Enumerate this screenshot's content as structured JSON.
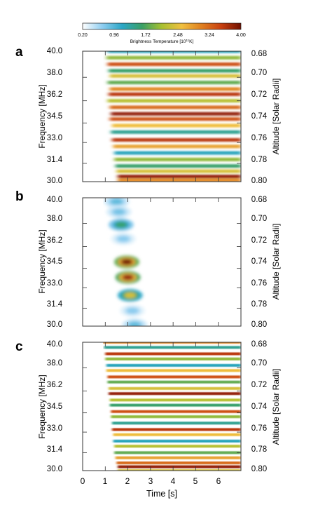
{
  "colorbar": {
    "ticks": [
      "0.20",
      "0.96",
      "1.72",
      "2.48",
      "3.24",
      "4.00"
    ],
    "label": "Brightness Temperature [10",
    "label_exp": "11",
    "label_unit": "K]",
    "colors": [
      "#ffffff",
      "#8ecdf0",
      "#2aa6c6",
      "#3aa066",
      "#a8c030",
      "#f0c040",
      "#e08020",
      "#c84010",
      "#701000"
    ]
  },
  "axes": {
    "ylabel_left": "Frequency [MHz]",
    "ylabel_right": "Altitude [Solar Radii]",
    "xlabel": "Time [s]",
    "x_ticks": [
      "0",
      "1",
      "2",
      "3",
      "4",
      "5",
      "6"
    ],
    "y_ticks_left": [
      "40.0",
      "38.0",
      "36.2",
      "34.5",
      "33.0",
      "31.4",
      "30.0"
    ],
    "y_ticks_right": [
      "0.68",
      "0.70",
      "0.72",
      "0.74",
      "0.76",
      "0.78",
      "0.80"
    ]
  },
  "panels": {
    "a": {
      "letter": "a"
    },
    "b": {
      "letter": "b"
    },
    "c": {
      "letter": "c"
    }
  },
  "chart_data": [
    {
      "type": "heatmap",
      "panel": "a",
      "xlim": [
        0,
        7
      ],
      "ylim": [
        30.0,
        40.0
      ],
      "colorbar_range": [
        0.2,
        4.0
      ],
      "striations": [
        {
          "freq": 40.0,
          "start": 1.1,
          "value": 1.2
        },
        {
          "freq": 39.5,
          "start": 1.05,
          "value": 2.0
        },
        {
          "freq": 39.0,
          "start": 1.1,
          "value": 3.4
        },
        {
          "freq": 38.5,
          "start": 1.15,
          "value": 1.6
        },
        {
          "freq": 38.1,
          "start": 1.2,
          "value": 2.4
        },
        {
          "freq": 37.6,
          "start": 1.1,
          "value": 1.8
        },
        {
          "freq": 37.1,
          "start": 1.2,
          "value": 3.0
        },
        {
          "freq": 36.7,
          "start": 1.15,
          "value": 3.6
        },
        {
          "freq": 36.2,
          "start": 1.1,
          "value": 2.2
        },
        {
          "freq": 35.7,
          "start": 1.2,
          "value": 3.2
        },
        {
          "freq": 35.2,
          "start": 1.25,
          "value": 3.8
        },
        {
          "freq": 34.8,
          "start": 1.2,
          "value": 3.4
        },
        {
          "freq": 34.3,
          "start": 1.3,
          "value": 2.6
        },
        {
          "freq": 33.8,
          "start": 1.25,
          "value": 1.4
        },
        {
          "freq": 33.2,
          "start": 1.3,
          "value": 3.6
        },
        {
          "freq": 32.7,
          "start": 1.35,
          "value": 2.8
        },
        {
          "freq": 32.2,
          "start": 1.4,
          "value": 1.2
        },
        {
          "freq": 31.7,
          "start": 1.4,
          "value": 2.0
        },
        {
          "freq": 31.2,
          "start": 1.45,
          "value": 1.6
        },
        {
          "freq": 30.8,
          "start": 1.5,
          "value": 2.4
        },
        {
          "freq": 30.4,
          "start": 1.55,
          "value": 3.8
        },
        {
          "freq": 30.1,
          "start": 1.55,
          "value": 3.0
        }
      ]
    },
    {
      "type": "heatmap",
      "panel": "b",
      "xlim": [
        0,
        7
      ],
      "ylim": [
        30.0,
        40.0
      ],
      "colorbar_range": [
        0.2,
        4.0
      ],
      "blobs": [
        {
          "time": 1.5,
          "freq": 39.7,
          "value": 0.9
        },
        {
          "time": 1.6,
          "freq": 38.9,
          "value": 0.8
        },
        {
          "time": 1.7,
          "freq": 37.9,
          "value": 1.6
        },
        {
          "time": 1.8,
          "freq": 36.8,
          "value": 0.7
        },
        {
          "time": 1.95,
          "freq": 35.0,
          "value": 4.0
        },
        {
          "time": 2.0,
          "freq": 33.8,
          "value": 3.8
        },
        {
          "time": 2.1,
          "freq": 32.4,
          "value": 2.4
        },
        {
          "time": 2.2,
          "freq": 31.2,
          "value": 0.7
        },
        {
          "time": 2.3,
          "freq": 30.1,
          "value": 0.9
        }
      ]
    },
    {
      "type": "heatmap",
      "panel": "c",
      "xlim": [
        0,
        7
      ],
      "ylim": [
        30.0,
        40.0
      ],
      "colorbar_range": [
        0.2,
        4.0
      ],
      "striations": [
        {
          "freq": 40.0,
          "start": 0.9,
          "value": 3.0
        },
        {
          "freq": 39.6,
          "start": 0.95,
          "value": 1.4
        },
        {
          "freq": 39.1,
          "start": 1.0,
          "value": 3.6
        },
        {
          "freq": 38.7,
          "start": 1.0,
          "value": 2.0
        },
        {
          "freq": 38.2,
          "start": 1.05,
          "value": 1.2
        },
        {
          "freq": 37.8,
          "start": 1.05,
          "value": 2.6
        },
        {
          "freq": 37.3,
          "start": 1.1,
          "value": 3.4
        },
        {
          "freq": 36.9,
          "start": 1.1,
          "value": 1.8
        },
        {
          "freq": 36.4,
          "start": 1.15,
          "value": 2.4
        },
        {
          "freq": 36.0,
          "start": 1.15,
          "value": 3.8
        },
        {
          "freq": 35.5,
          "start": 1.2,
          "value": 2.2
        },
        {
          "freq": 35.1,
          "start": 1.2,
          "value": 1.6
        },
        {
          "freq": 34.6,
          "start": 1.25,
          "value": 3.4
        },
        {
          "freq": 34.2,
          "start": 1.25,
          "value": 2.0
        },
        {
          "freq": 33.7,
          "start": 1.3,
          "value": 1.4
        },
        {
          "freq": 33.2,
          "start": 1.3,
          "value": 3.6
        },
        {
          "freq": 32.8,
          "start": 1.35,
          "value": 2.6
        },
        {
          "freq": 32.3,
          "start": 1.35,
          "value": 1.2
        },
        {
          "freq": 31.9,
          "start": 1.4,
          "value": 2.2
        },
        {
          "freq": 31.4,
          "start": 1.4,
          "value": 1.8
        },
        {
          "freq": 31.0,
          "start": 1.45,
          "value": 2.8
        },
        {
          "freq": 30.6,
          "start": 1.5,
          "value": 3.2
        },
        {
          "freq": 30.3,
          "start": 1.55,
          "value": 3.8
        },
        {
          "freq": 30.0,
          "start": 1.55,
          "value": 2.4
        }
      ]
    }
  ]
}
